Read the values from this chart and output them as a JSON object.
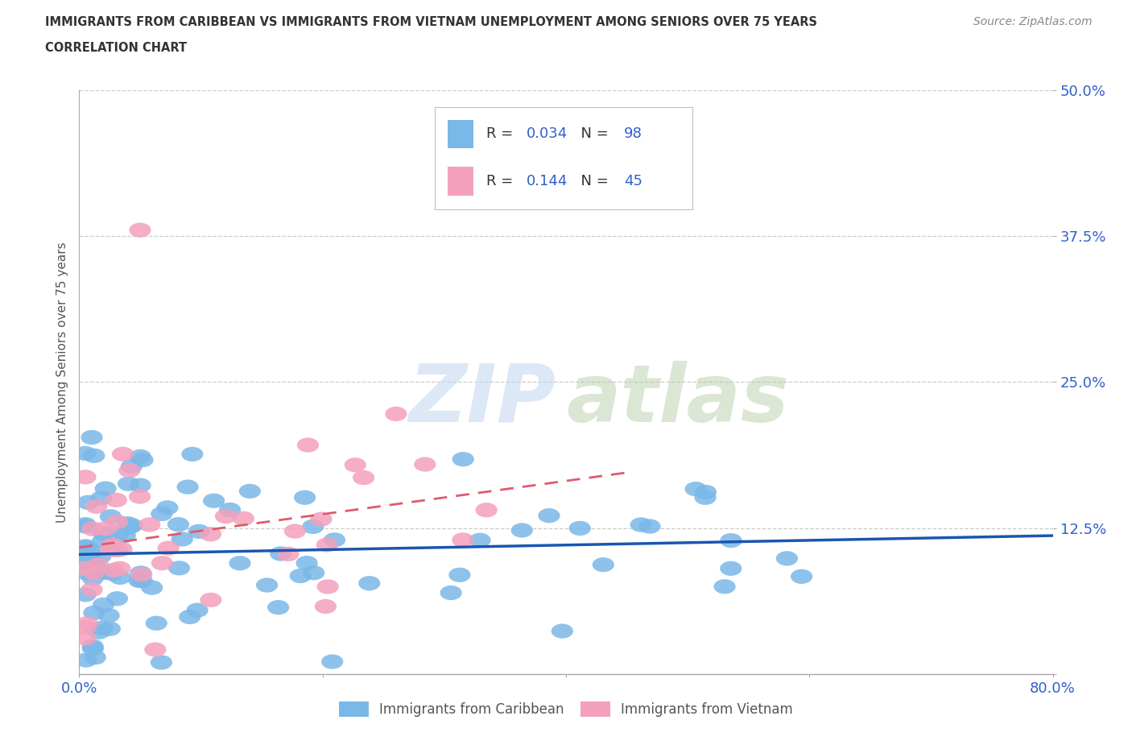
{
  "title_line1": "IMMIGRANTS FROM CARIBBEAN VS IMMIGRANTS FROM VIETNAM UNEMPLOYMENT AMONG SENIORS OVER 75 YEARS",
  "title_line2": "CORRELATION CHART",
  "source": "Source: ZipAtlas.com",
  "ylabel": "Unemployment Among Seniors over 75 years",
  "xlim": [
    0.0,
    0.8
  ],
  "ylim": [
    0.0,
    0.5
  ],
  "xtick_positions": [
    0.0,
    0.2,
    0.4,
    0.6,
    0.8
  ],
  "xticklabels": [
    "0.0%",
    "",
    "",
    "",
    "80.0%"
  ],
  "ytick_positions": [
    0.0,
    0.125,
    0.25,
    0.375,
    0.5
  ],
  "yticklabels": [
    "",
    "12.5%",
    "25.0%",
    "37.5%",
    "50.0%"
  ],
  "caribbean_color": "#7ab8e8",
  "vietnam_color": "#f4a0bc",
  "caribbean_line_color": "#1a56b0",
  "vietnam_line_color": "#e05a6a",
  "r_caribbean": 0.034,
  "n_caribbean": 98,
  "r_vietnam": 0.144,
  "n_vietnam": 45,
  "legend_label_caribbean": "Immigrants from Caribbean",
  "legend_label_vietnam": "Immigrants from Vietnam",
  "tick_color": "#3060cc",
  "title_color": "#333333",
  "source_color": "#888888",
  "ylabel_color": "#555555",
  "grid_color": "#cccccc",
  "background_color": "#ffffff",
  "legend_r_label_color": "#333333",
  "legend_value_color": "#3060cc"
}
